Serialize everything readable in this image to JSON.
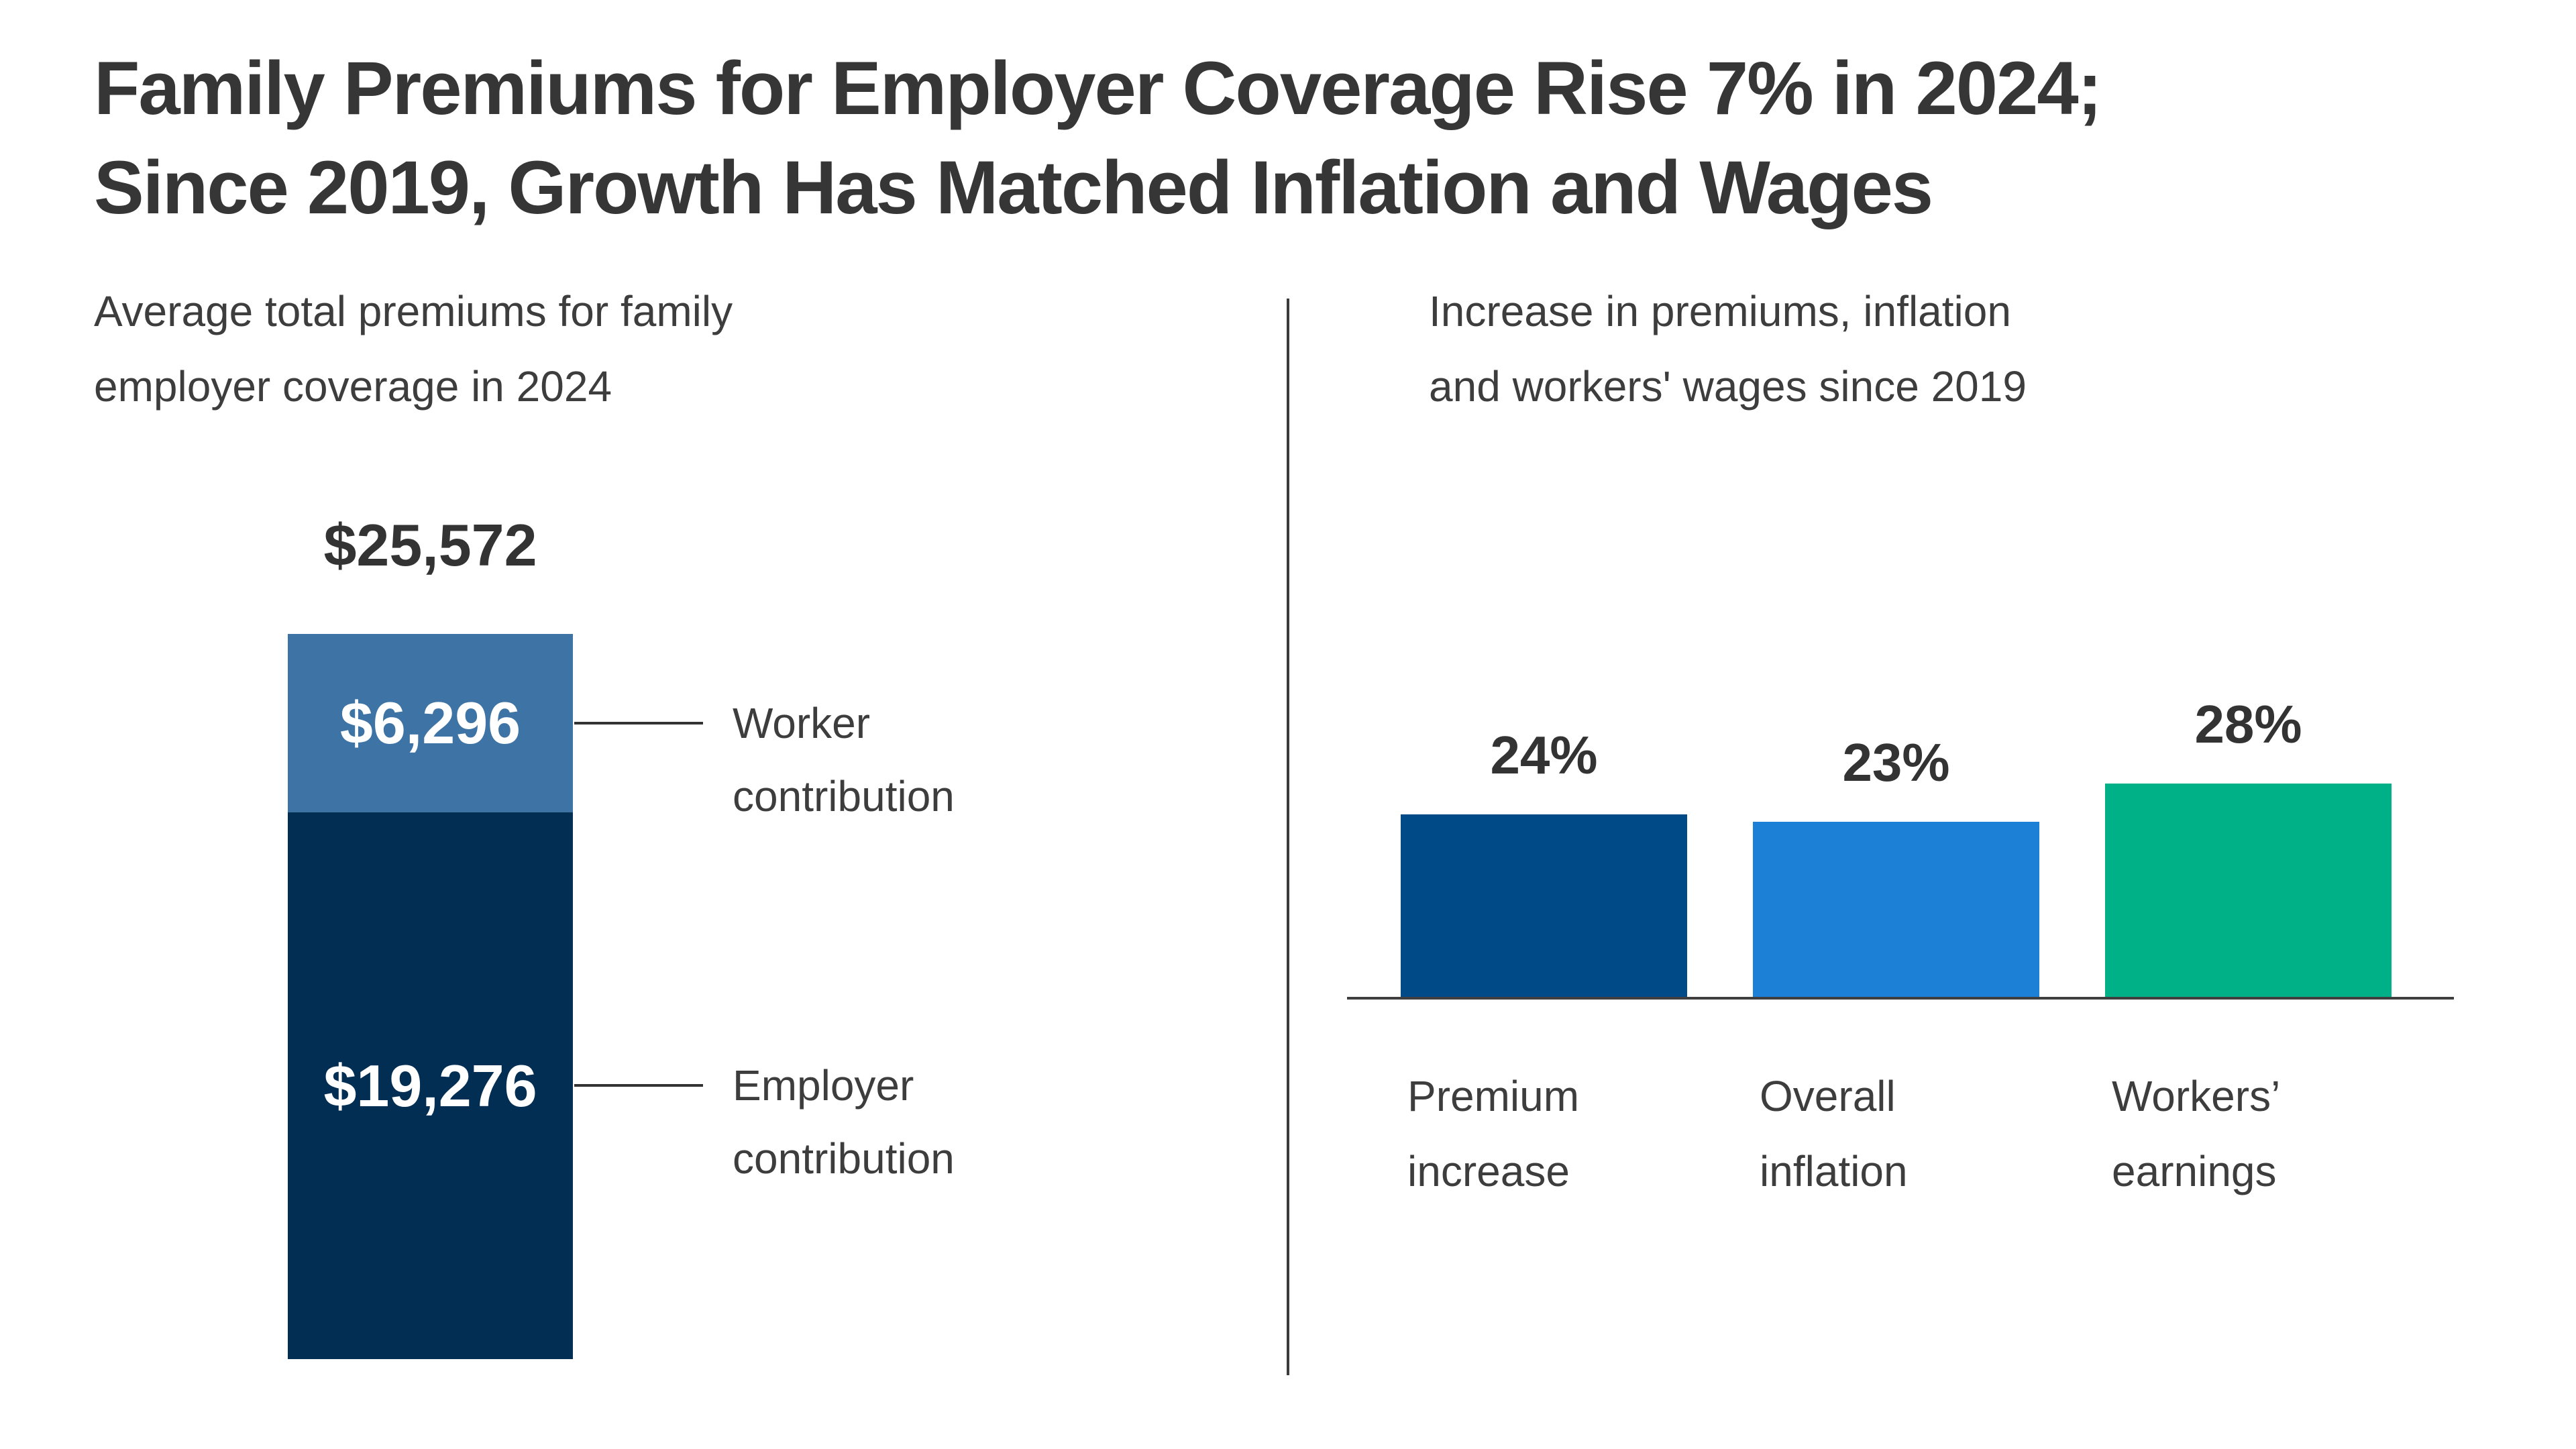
{
  "title": {
    "lines": [
      "Family Premiums for Employer Coverage Rise 7% in 2024;",
      "Since 2019, Growth Has Matched Inflation and Wages"
    ]
  },
  "left_panel": {
    "subtitle_lines": [
      "Average total premiums for family",
      "employer coverage in 2024"
    ],
    "annotations": {
      "worker_lines": [
        "Worker",
        "contribution"
      ],
      "employer_lines": [
        "Employer",
        "contribution"
      ]
    }
  },
  "right_panel": {
    "subtitle_lines": [
      "Increase in premiums, inflation",
      "and workers' wages since 2019"
    ]
  },
  "chart_data": [
    {
      "type": "bar",
      "variant": "single-stacked-column",
      "title": "Average total premiums for family employer coverage in 2024",
      "total": {
        "label": "$25,572",
        "value": 25572
      },
      "series": [
        {
          "name": "Worker contribution",
          "value": 6296,
          "label": "$6,296",
          "color": "#3D73A5"
        },
        {
          "name": "Employer contribution",
          "value": 19276,
          "label": "$19,276",
          "color": "#032E53"
        }
      ],
      "orientation": "vertical",
      "grid": false,
      "legend_position": "right-side annotations with connector lines"
    },
    {
      "type": "bar",
      "title": "Increase in premiums, inflation and workers' wages since 2019",
      "categories": [
        "Premium increase",
        "Overall inflation",
        "Workers’ earnings"
      ],
      "category_lines": [
        [
          "Premium",
          "increase"
        ],
        [
          "Overall",
          "inflation"
        ],
        [
          "Workers’",
          "earnings"
        ]
      ],
      "values": [
        24,
        23,
        28
      ],
      "labels": [
        "24%",
        "23%",
        "28%"
      ],
      "colors": [
        "#004A87",
        "#1C80D6",
        "#00B188"
      ],
      "xlabel": "",
      "ylabel": "",
      "ylim": [
        0,
        28
      ],
      "grid": false,
      "axis": "baseline only",
      "legend_position": "none"
    }
  ],
  "colors": {
    "title_text": "#363636",
    "body_text": "#3d3d3d",
    "value_text": "#333333",
    "bar_value_text_light": "#ffffff",
    "divider": "#3b3b3b",
    "axis": "#3f3f3f"
  }
}
